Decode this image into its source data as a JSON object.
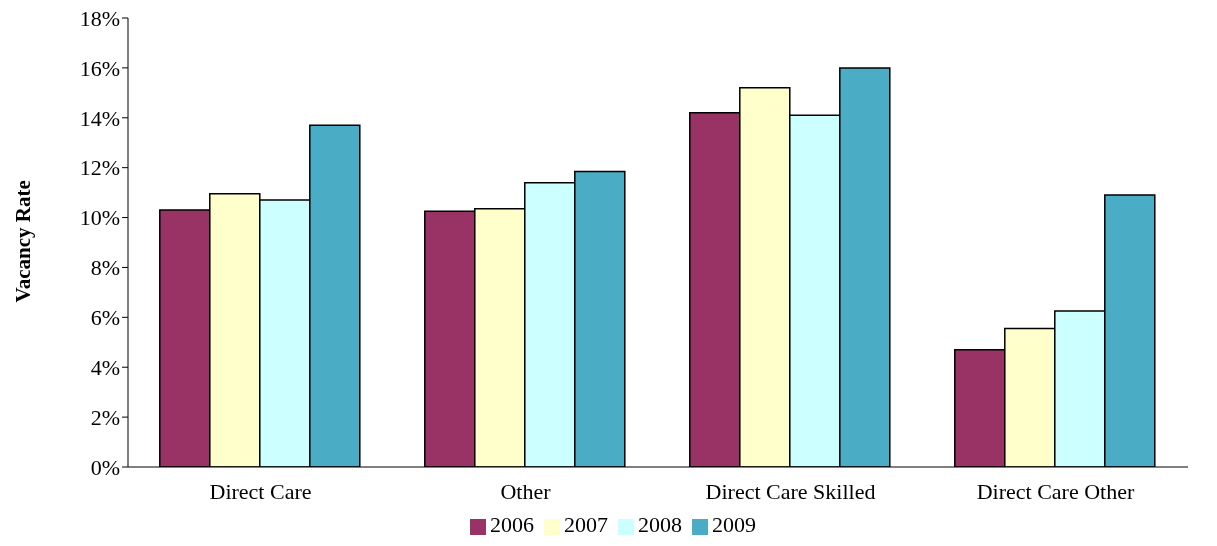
{
  "chart_data": {
    "type": "bar",
    "ylabel": "Vacancy Rate",
    "categories": [
      "Direct Care",
      "Other",
      "Direct Care Skilled",
      "Direct Care Other"
    ],
    "series": [
      {
        "name": "2006",
        "color": "#993366",
        "values": [
          10.3,
          10.25,
          14.2,
          4.7
        ]
      },
      {
        "name": "2007",
        "color": "#ffffcc",
        "values": [
          10.95,
          10.35,
          15.2,
          5.55
        ]
      },
      {
        "name": "2008",
        "color": "#ccffff",
        "values": [
          10.7,
          11.4,
          14.1,
          6.25
        ]
      },
      {
        "name": "2009",
        "color": "#4bacc6",
        "values": [
          13.7,
          11.85,
          16.0,
          10.9
        ]
      }
    ],
    "ylim": [
      0,
      18
    ],
    "yticks": [
      {
        "value": 0,
        "label": "0%"
      },
      {
        "value": 2,
        "label": "2%"
      },
      {
        "value": 4,
        "label": "4%"
      },
      {
        "value": 6,
        "label": "6%"
      },
      {
        "value": 8,
        "label": "8%"
      },
      {
        "value": 10,
        "label": "10%"
      },
      {
        "value": 12,
        "label": "12%"
      },
      {
        "value": 14,
        "label": "14%"
      },
      {
        "value": 16,
        "label": "16%"
      },
      {
        "value": 18,
        "label": "18%"
      }
    ],
    "grid": false,
    "legend": "bottom"
  }
}
